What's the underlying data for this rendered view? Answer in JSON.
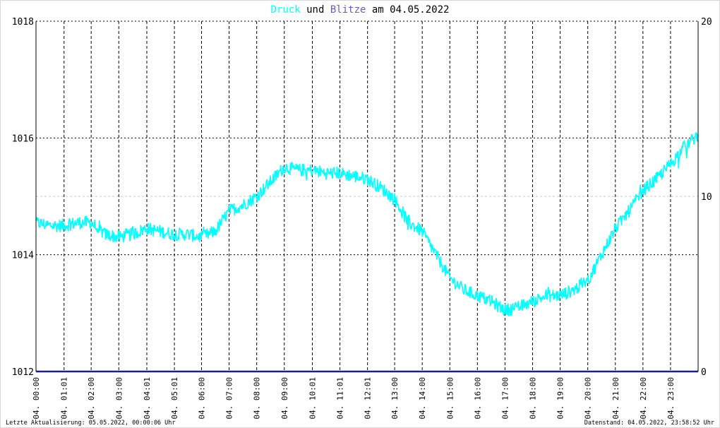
{
  "title": {
    "part1": "Druck",
    "part2": " und ",
    "part3": "Blitze",
    "part4": " am 04.05.2022"
  },
  "footer": {
    "left": "Letzte Aktualisierung: 05.05.2022, 00:00:06 Uhr",
    "right": "Datenstand: 04.05.2022, 23:58:52 Uhr"
  },
  "colors": {
    "druck": "#00ffff",
    "blitze": "#6060c0",
    "baseline": "#202080",
    "title_other": "#000000"
  },
  "chart_data": {
    "type": "line",
    "xlim_hours": [
      0,
      24
    ],
    "ylim_left": [
      1012,
      1018
    ],
    "ylim_right": [
      0,
      20
    ],
    "left_ticks": [
      "1012",
      "1014",
      "1016",
      "1018"
    ],
    "right_ticks": [
      "0",
      "10",
      "20"
    ],
    "x_tick_labels": [
      "04. 00:00",
      "04. 01:01",
      "04. 02:00",
      "04. 03:00",
      "04. 04:01",
      "04. 05:01",
      "04. 06:00",
      "04. 07:00",
      "04. 08:00",
      "04. 09:00",
      "04. 10:01",
      "04. 11:01",
      "04. 12:01",
      "04. 13:00",
      "04. 14:00",
      "04. 15:00",
      "04. 16:00",
      "04. 17:00",
      "04. 18:00",
      "04. 19:00",
      "04. 20:00",
      "04. 21:00",
      "04. 22:00",
      "04. 23:00"
    ],
    "x_tick_hours": [
      0,
      1.017,
      2,
      3,
      4.017,
      5.017,
      6,
      7,
      8,
      9,
      10.017,
      11.017,
      12.017,
      13,
      14,
      15,
      16,
      17,
      18,
      19,
      20,
      21,
      22,
      23
    ],
    "series": [
      {
        "name": "Druck",
        "axis": "left",
        "x": [
          0,
          0.5,
          1,
          1.5,
          2,
          2.5,
          3,
          3.5,
          4,
          4.5,
          5,
          5.5,
          6,
          6.5,
          7,
          7.5,
          8,
          8.5,
          9,
          9.5,
          10,
          10.5,
          11,
          11.5,
          12,
          12.5,
          13,
          13.5,
          14,
          14.5,
          15,
          15.5,
          16,
          16.5,
          17,
          17.5,
          18,
          18.5,
          19,
          19.5,
          20,
          20.5,
          21,
          21.5,
          22,
          22.5,
          23,
          23.5,
          24
        ],
        "values": [
          1014.55,
          1014.5,
          1014.5,
          1014.55,
          1014.55,
          1014.35,
          1014.3,
          1014.35,
          1014.45,
          1014.4,
          1014.35,
          1014.35,
          1014.3,
          1014.4,
          1014.75,
          1014.85,
          1015.0,
          1015.25,
          1015.5,
          1015.45,
          1015.45,
          1015.4,
          1015.4,
          1015.35,
          1015.3,
          1015.15,
          1014.95,
          1014.55,
          1014.4,
          1014.0,
          1013.6,
          1013.4,
          1013.3,
          1013.2,
          1013.05,
          1013.1,
          1013.2,
          1013.3,
          1013.3,
          1013.4,
          1013.55,
          1014.0,
          1014.45,
          1014.75,
          1015.1,
          1015.3,
          1015.55,
          1015.85,
          1016.05
        ]
      },
      {
        "name": "Blitze",
        "axis": "right",
        "x": [
          0,
          24
        ],
        "values": [
          0,
          0
        ]
      }
    ]
  }
}
